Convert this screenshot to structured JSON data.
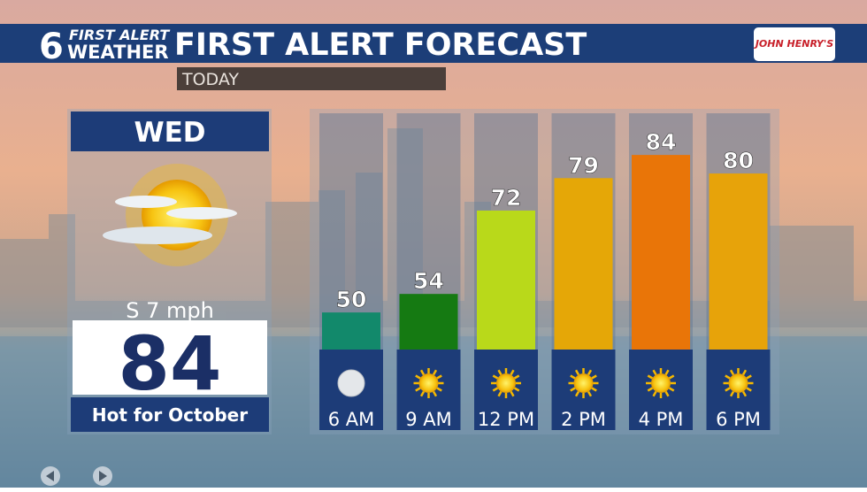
{
  "header": {
    "logo_number": "6",
    "logo_line1": "FIRST ALERT",
    "logo_line2": "WEATHER",
    "title": "FIRST ALERT FORECAST",
    "sponsor": "JOHN HENRY'S",
    "period": "TODAY"
  },
  "day_panel": {
    "day": "WED",
    "wind": "S 7 mph",
    "high": "84",
    "note": "Hot for October"
  },
  "chart_data": {
    "type": "bar",
    "categories": [
      "6 AM",
      "9 AM",
      "12 PM",
      "2 PM",
      "4 PM",
      "6 PM"
    ],
    "values": [
      50,
      54,
      72,
      79,
      84,
      80
    ],
    "colors": [
      "#12896b",
      "#157a12",
      "#b9d91a",
      "#e5a707",
      "#e97508",
      "#e7a30a"
    ],
    "ylim": [
      42,
      93
    ]
  }
}
